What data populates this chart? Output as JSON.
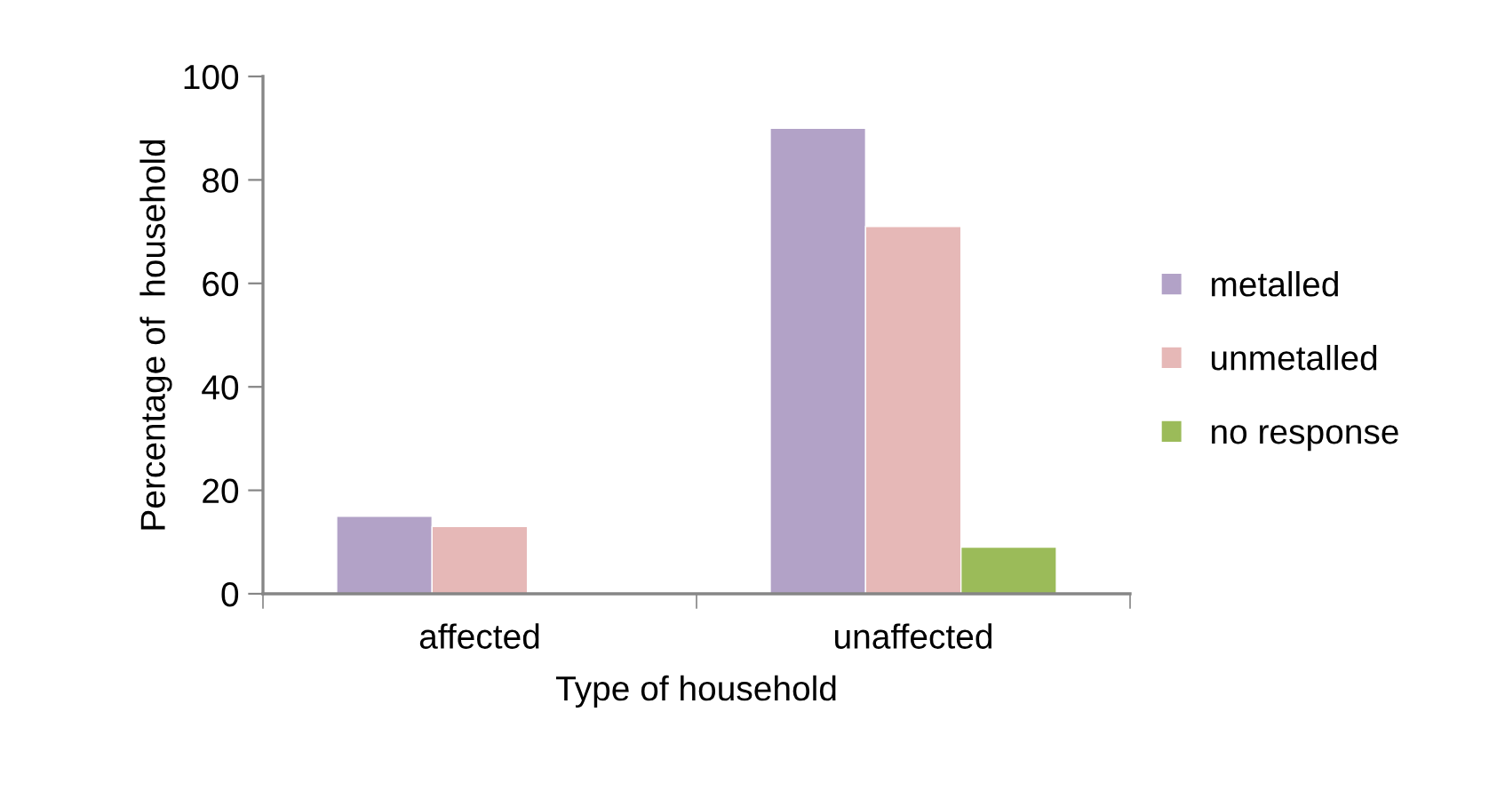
{
  "chart_data": {
    "type": "bar",
    "xlabel": "Type of household",
    "ylabel": "Percentage of  household",
    "categories": [
      "affected",
      "unaffected"
    ],
    "series": [
      {
        "name": "metalled",
        "color": "#b2a2c7",
        "values": [
          15,
          90
        ]
      },
      {
        "name": "unmetalled",
        "color": "#e6b8b7",
        "values": [
          13,
          71
        ]
      },
      {
        "name": "no response",
        "color": "#9bbb59",
        "values": [
          null,
          9
        ]
      }
    ],
    "ylim": [
      0,
      100
    ],
    "yticks": [
      0,
      20,
      40,
      60,
      80,
      100
    ],
    "grid": false,
    "legend": "right"
  }
}
